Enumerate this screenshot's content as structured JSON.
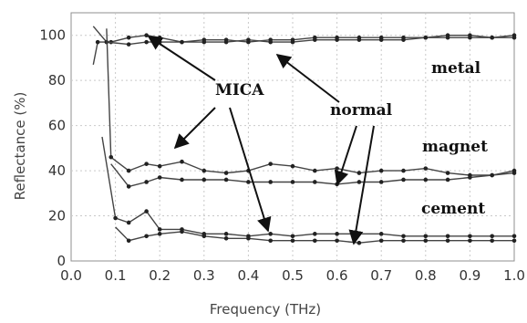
{
  "chart_data": {
    "type": "line",
    "xlabel": "Frequency (THz)",
    "ylabel": "Reflectance (%)",
    "xlim": [
      0,
      1.0
    ],
    "ylim": [
      0,
      110
    ],
    "xticks": [
      "0.0",
      "0.1",
      "0.2",
      "0.3",
      "0.4",
      "0.5",
      "0.6",
      "0.7",
      "0.8",
      "0.9",
      "1.0"
    ],
    "yticks": [
      "0",
      "20",
      "40",
      "60",
      "80",
      "100"
    ],
    "grid": true,
    "line_color": "#444444",
    "annotations": [
      {
        "text": "MICA"
      },
      {
        "text": "normal"
      },
      {
        "text": "metal"
      },
      {
        "text": "magnet"
      },
      {
        "text": "cement"
      }
    ],
    "series": [
      {
        "values": [
          [
            0.05,
            87
          ],
          [
            0.06,
            97
          ],
          [
            0.09,
            97
          ],
          [
            0.13,
            99
          ],
          [
            0.17,
            100
          ],
          [
            0.2,
            99
          ],
          [
            0.25,
            97
          ],
          [
            0.3,
            98
          ],
          [
            0.35,
            98
          ],
          [
            0.4,
            97
          ],
          [
            0.45,
            98
          ],
          [
            0.5,
            98
          ],
          [
            0.55,
            99
          ],
          [
            0.6,
            99
          ],
          [
            0.65,
            99
          ],
          [
            0.7,
            99
          ],
          [
            0.75,
            99
          ],
          [
            0.8,
            99
          ],
          [
            0.85,
            100
          ],
          [
            0.9,
            100
          ],
          [
            0.95,
            99
          ],
          [
            1.0,
            100
          ]
        ]
      },
      {
        "values": [
          [
            0.05,
            104
          ],
          [
            0.08,
            97
          ],
          [
            0.13,
            96
          ],
          [
            0.17,
            97
          ],
          [
            0.2,
            97
          ],
          [
            0.25,
            97
          ],
          [
            0.3,
            97
          ],
          [
            0.35,
            97
          ],
          [
            0.4,
            98
          ],
          [
            0.45,
            97
          ],
          [
            0.5,
            97
          ],
          [
            0.55,
            98
          ],
          [
            0.6,
            98
          ],
          [
            0.65,
            98
          ],
          [
            0.7,
            98
          ],
          [
            0.75,
            98
          ],
          [
            0.8,
            99
          ],
          [
            0.85,
            99
          ],
          [
            0.9,
            99
          ],
          [
            0.95,
            99
          ],
          [
            1.0,
            99
          ]
        ]
      },
      {
        "values": [
          [
            0.08,
            103
          ],
          [
            0.09,
            46
          ],
          [
            0.13,
            40
          ],
          [
            0.17,
            43
          ],
          [
            0.2,
            42
          ],
          [
            0.25,
            44
          ],
          [
            0.3,
            40
          ],
          [
            0.35,
            39
          ],
          [
            0.4,
            40
          ],
          [
            0.45,
            43
          ],
          [
            0.5,
            42
          ],
          [
            0.55,
            40
          ],
          [
            0.6,
            41
          ],
          [
            0.65,
            39
          ],
          [
            0.7,
            40
          ],
          [
            0.75,
            40
          ],
          [
            0.8,
            41
          ],
          [
            0.85,
            39
          ],
          [
            0.9,
            38
          ],
          [
            0.95,
            38
          ],
          [
            1.0,
            40
          ]
        ]
      },
      {
        "values": [
          [
            0.09,
            43
          ],
          [
            0.13,
            33
          ],
          [
            0.17,
            35
          ],
          [
            0.2,
            37
          ],
          [
            0.25,
            36
          ],
          [
            0.3,
            36
          ],
          [
            0.35,
            36
          ],
          [
            0.4,
            35
          ],
          [
            0.45,
            35
          ],
          [
            0.5,
            35
          ],
          [
            0.55,
            35
          ],
          [
            0.6,
            34
          ],
          [
            0.65,
            35
          ],
          [
            0.7,
            35
          ],
          [
            0.75,
            36
          ],
          [
            0.8,
            36
          ],
          [
            0.85,
            36
          ],
          [
            0.9,
            37
          ],
          [
            0.95,
            38
          ],
          [
            1.0,
            39
          ]
        ]
      },
      {
        "values": [
          [
            0.07,
            55
          ],
          [
            0.1,
            19
          ],
          [
            0.13,
            17
          ],
          [
            0.17,
            22
          ],
          [
            0.2,
            14
          ],
          [
            0.25,
            14
          ],
          [
            0.3,
            12
          ],
          [
            0.35,
            12
          ],
          [
            0.4,
            11
          ],
          [
            0.45,
            12
          ],
          [
            0.5,
            11
          ],
          [
            0.55,
            12
          ],
          [
            0.6,
            12
          ],
          [
            0.65,
            12
          ],
          [
            0.7,
            12
          ],
          [
            0.75,
            11
          ],
          [
            0.8,
            11
          ],
          [
            0.85,
            11
          ],
          [
            0.9,
            11
          ],
          [
            0.95,
            11
          ],
          [
            1.0,
            11
          ]
        ]
      },
      {
        "values": [
          [
            0.1,
            15
          ],
          [
            0.13,
            9
          ],
          [
            0.17,
            11
          ],
          [
            0.2,
            12
          ],
          [
            0.25,
            13
          ],
          [
            0.3,
            11
          ],
          [
            0.35,
            10
          ],
          [
            0.4,
            10
          ],
          [
            0.45,
            9
          ],
          [
            0.5,
            9
          ],
          [
            0.55,
            9
          ],
          [
            0.6,
            9
          ],
          [
            0.65,
            8
          ],
          [
            0.7,
            9
          ],
          [
            0.75,
            9
          ],
          [
            0.8,
            9
          ],
          [
            0.85,
            9
          ],
          [
            0.9,
            9
          ],
          [
            0.95,
            9
          ],
          [
            1.0,
            9
          ]
        ]
      }
    ]
  }
}
